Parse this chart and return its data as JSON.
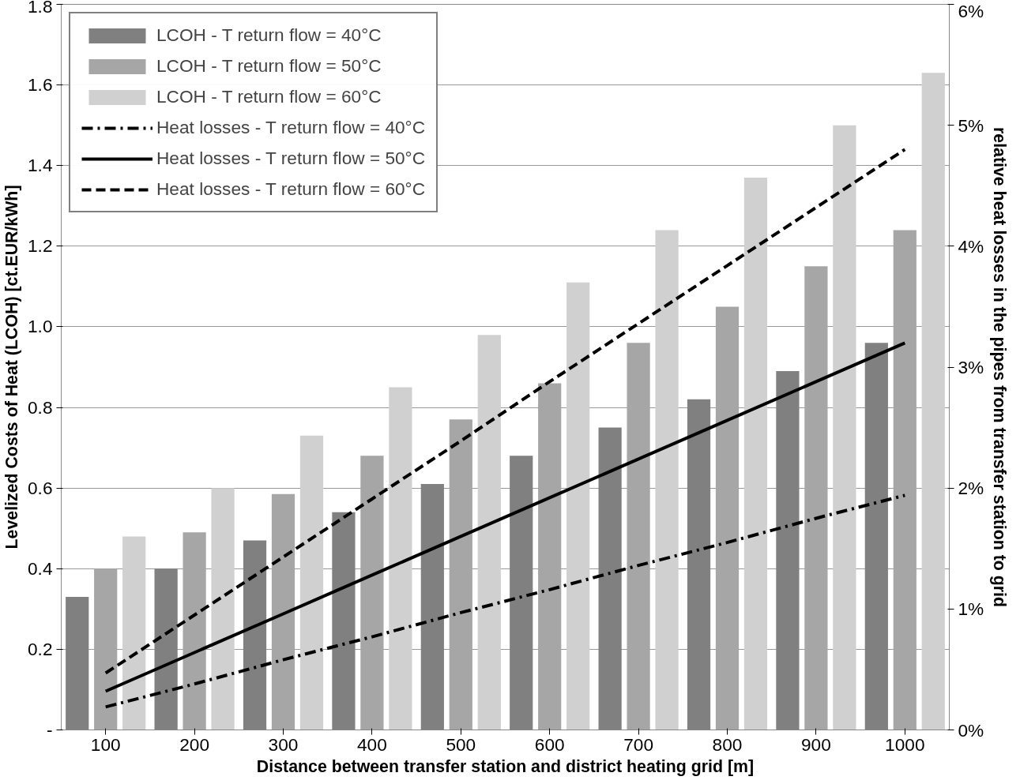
{
  "chart_data": {
    "type": "bar",
    "xlabel": "Distance between transfer station and district heating grid [m]",
    "ylabel": "Levelized Costs of Heat (LCOH) [ct.EUR/kWh]",
    "y2label": "relative heat losses in the pipes from transfer station to grid",
    "categories": [
      "100",
      "200",
      "300",
      "400",
      "500",
      "600",
      "700",
      "800",
      "900",
      "1000"
    ],
    "series": [
      {
        "name": "LCOH - T return flow = 40°C",
        "color": "#808080",
        "values": [
          0.33,
          0.4,
          0.47,
          0.54,
          0.61,
          0.68,
          0.75,
          0.82,
          0.89,
          0.96
        ]
      },
      {
        "name": "LCOH - T return flow = 50°C",
        "color": "#a6a6a6",
        "values": [
          0.4,
          0.49,
          0.585,
          0.68,
          0.77,
          0.86,
          0.96,
          1.05,
          1.15,
          1.24
        ]
      },
      {
        "name": "LCOH - T return flow = 60°C",
        "color": "#d0d0d0",
        "values": [
          0.48,
          0.6,
          0.73,
          0.85,
          0.98,
          1.11,
          1.24,
          1.37,
          1.5,
          1.63
        ]
      },
      {
        "type": "line",
        "name": "Heat losses - T return flow = 40°C",
        "color": "#000000",
        "axis": "y2",
        "line_style": "dashdot",
        "values": [
          0.19,
          0.38,
          0.58,
          0.77,
          0.97,
          1.16,
          1.36,
          1.55,
          1.75,
          1.94
        ]
      },
      {
        "type": "line",
        "name": "Heat losses - T return flow = 50°C",
        "color": "#000000",
        "axis": "y2",
        "line_style": "solid",
        "values": [
          0.32,
          0.64,
          0.96,
          1.28,
          1.6,
          1.92,
          2.24,
          2.56,
          2.88,
          3.2
        ]
      },
      {
        "type": "line",
        "name": "Heat losses - T return flow = 60°C",
        "color": "#000000",
        "axis": "y2",
        "line_style": "dashed",
        "values": [
          0.47,
          0.95,
          1.43,
          1.91,
          2.39,
          2.88,
          3.36,
          3.84,
          4.32,
          4.8
        ]
      }
    ],
    "ylim": [
      0,
      1.8
    ],
    "yticks": [
      {
        "value": 0,
        "label": "-"
      },
      0.2,
      0.4,
      0.6,
      0.8,
      {
        "value": 1.0,
        "label": "1.0"
      },
      1.2,
      1.4,
      1.6,
      1.8
    ],
    "y2lim": [
      0,
      6
    ],
    "y2ticks": [
      {
        "value": 0,
        "label": "0%"
      },
      {
        "value": 1,
        "label": "1%"
      },
      {
        "value": 2,
        "label": "2%"
      },
      {
        "value": 3,
        "label": "3%"
      },
      {
        "value": 4,
        "label": "4%"
      },
      {
        "value": 5,
        "label": "5%"
      },
      {
        "value": 6,
        "label": "6%"
      }
    ],
    "grid": "y",
    "legend": "top left"
  }
}
